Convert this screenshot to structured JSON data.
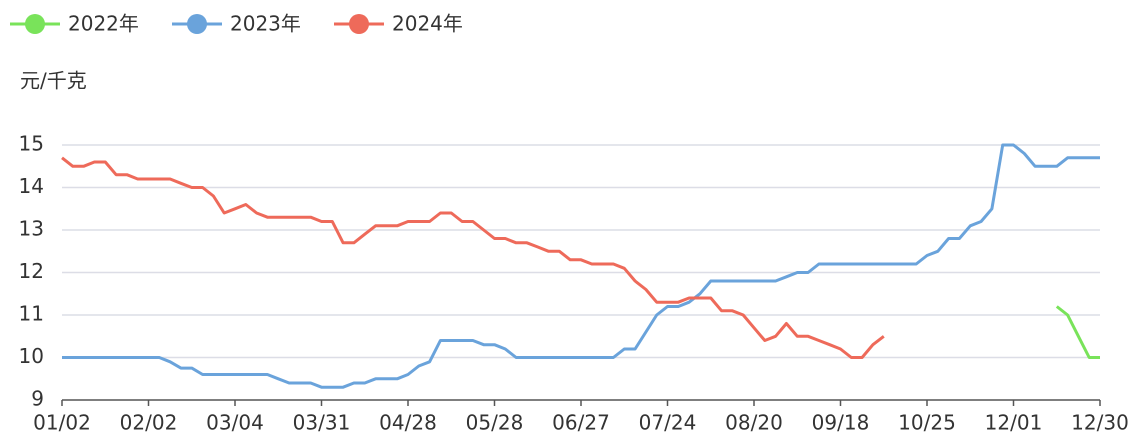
{
  "chart_data": {
    "type": "line",
    "y_label": "元/千克",
    "categories": [
      "01/02",
      null,
      null,
      null,
      null,
      null,
      null,
      null,
      "02/02",
      null,
      null,
      null,
      null,
      null,
      null,
      null,
      "03/04",
      null,
      null,
      null,
      null,
      null,
      null,
      null,
      "03/31",
      null,
      null,
      null,
      null,
      null,
      null,
      null,
      "04/28",
      null,
      null,
      null,
      null,
      null,
      null,
      null,
      "05/28",
      null,
      null,
      null,
      null,
      null,
      null,
      null,
      "06/27",
      null,
      null,
      null,
      null,
      null,
      null,
      null,
      "07/24",
      null,
      null,
      null,
      null,
      null,
      null,
      null,
      "08/20",
      null,
      null,
      null,
      null,
      null,
      null,
      null,
      "09/18",
      null,
      null,
      null,
      null,
      null,
      null,
      null,
      "10/25",
      null,
      null,
      null,
      null,
      null,
      null,
      null,
      "12/01",
      null,
      null,
      null,
      null,
      null,
      null,
      null,
      "12/30"
    ],
    "series": [
      {
        "name": "2022年",
        "color": "#79e35a",
        "values": [
          null,
          null,
          null,
          null,
          null,
          null,
          null,
          null,
          null,
          null,
          null,
          null,
          null,
          null,
          null,
          null,
          null,
          null,
          null,
          null,
          null,
          null,
          null,
          null,
          null,
          null,
          null,
          null,
          null,
          null,
          null,
          null,
          null,
          null,
          null,
          null,
          null,
          null,
          null,
          null,
          null,
          null,
          null,
          null,
          null,
          null,
          null,
          null,
          null,
          null,
          null,
          null,
          null,
          null,
          null,
          null,
          null,
          null,
          null,
          null,
          null,
          null,
          null,
          null,
          null,
          null,
          null,
          null,
          null,
          null,
          null,
          null,
          null,
          null,
          null,
          null,
          null,
          null,
          null,
          null,
          null,
          null,
          null,
          null,
          null,
          null,
          null,
          null,
          null,
          null,
          null,
          null,
          11.2,
          11.0,
          10.5,
          10.0,
          10.0
        ]
      },
      {
        "name": "2023年",
        "color": "#6aa3db",
        "values": [
          10,
          10,
          10,
          10,
          10,
          10,
          10,
          10,
          10,
          10,
          9.9,
          9.75,
          9.75,
          9.6,
          9.6,
          9.6,
          9.6,
          9.6,
          9.6,
          9.6,
          9.5,
          9.4,
          9.4,
          9.4,
          9.3,
          9.3,
          9.3,
          9.4,
          9.4,
          9.5,
          9.5,
          9.5,
          9.6,
          9.8,
          9.9,
          10.4,
          10.4,
          10.4,
          10.4,
          10.3,
          10.3,
          10.2,
          10,
          10,
          10,
          10,
          10,
          10,
          10,
          10,
          10,
          10,
          10.2,
          10.2,
          10.6,
          11.0,
          11.2,
          11.2,
          11.3,
          11.5,
          11.8,
          11.8,
          11.8,
          11.8,
          11.8,
          11.8,
          11.8,
          11.9,
          12,
          12,
          12.2,
          12.2,
          12.2,
          12.2,
          12.2,
          12.2,
          12.2,
          12.2,
          12.2,
          12.2,
          12.4,
          12.5,
          12.8,
          12.8,
          13.1,
          13.2,
          13.5,
          15,
          15,
          14.8,
          14.5,
          14.5,
          14.5,
          14.7,
          14.7,
          14.7,
          14.7
        ]
      },
      {
        "name": "2024年",
        "color": "#ee6a5a",
        "values": [
          14.7,
          14.5,
          14.5,
          14.6,
          14.6,
          14.3,
          14.3,
          14.2,
          14.2,
          14.2,
          14.2,
          14.1,
          14.0,
          14.0,
          13.8,
          13.4,
          13.5,
          13.6,
          13.4,
          13.3,
          13.3,
          13.3,
          13.3,
          13.3,
          13.2,
          13.2,
          12.7,
          12.7,
          12.9,
          13.1,
          13.1,
          13.1,
          13.2,
          13.2,
          13.2,
          13.4,
          13.4,
          13.2,
          13.2,
          13.0,
          12.8,
          12.8,
          12.7,
          12.7,
          12.6,
          12.5,
          12.5,
          12.3,
          12.3,
          12.2,
          12.2,
          12.2,
          12.1,
          11.8,
          11.6,
          11.3,
          11.3,
          11.3,
          11.4,
          11.4,
          11.4,
          11.1,
          11.1,
          11.0,
          10.7,
          10.4,
          10.5,
          10.8,
          10.5,
          10.5,
          10.4,
          10.3,
          10.2,
          10.0,
          10.0,
          10.3,
          10.5,
          null,
          null,
          null,
          null,
          null,
          null,
          null,
          null,
          null,
          null,
          null,
          null,
          null,
          null,
          null,
          null,
          null,
          null,
          null,
          null
        ]
      }
    ],
    "ylim": [
      9,
      15.5
    ],
    "yticks": [
      9,
      10,
      11,
      12,
      13,
      14,
      15
    ],
    "grid": true
  }
}
